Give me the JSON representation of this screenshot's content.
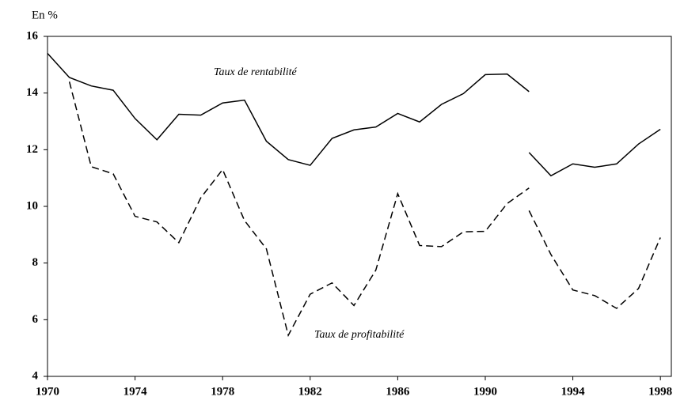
{
  "chart_data": {
    "type": "line",
    "y_label": "En %",
    "x": [
      1970,
      1971,
      1972,
      1973,
      1974,
      1975,
      1976,
      1977,
      1978,
      1979,
      1980,
      1981,
      1982,
      1983,
      1984,
      1985,
      1986,
      1987,
      1988,
      1989,
      1990,
      1991,
      1992,
      1992,
      1992,
      1993,
      1994,
      1995,
      1996,
      1997,
      1998
    ],
    "series": [
      {
        "name": "Taux de rentabilité",
        "color": "#000000",
        "dash": "solid",
        "values": [
          15.4,
          14.55,
          14.25,
          14.1,
          13.1,
          12.35,
          13.25,
          13.22,
          13.65,
          13.75,
          12.3,
          11.65,
          11.45,
          12.4,
          12.7,
          12.8,
          13.28,
          12.98,
          13.6,
          13.98,
          14.65,
          14.67,
          14.05,
          null,
          11.9,
          11.08,
          11.5,
          11.38,
          11.5,
          12.2,
          12.72
        ]
      },
      {
        "name": "Taux de profitabilité",
        "color": "#000000",
        "dash": "dashed",
        "values": [
          null,
          14.4,
          11.4,
          11.15,
          9.65,
          9.45,
          8.72,
          10.3,
          11.3,
          9.5,
          8.5,
          5.45,
          6.9,
          7.3,
          6.5,
          7.75,
          10.45,
          8.62,
          8.58,
          9.1,
          9.12,
          10.1,
          10.65,
          null,
          9.85,
          8.3,
          7.05,
          6.85,
          6.4,
          7.1,
          8.9
        ]
      }
    ],
    "xlim": [
      1970,
      1998.5
    ],
    "xticks": [
      1970,
      1974,
      1978,
      1982,
      1986,
      1990,
      1994,
      1998
    ],
    "ylim": [
      4,
      16
    ],
    "yticks": [
      4,
      6,
      8,
      10,
      12,
      14,
      16
    ],
    "grid": false
  }
}
